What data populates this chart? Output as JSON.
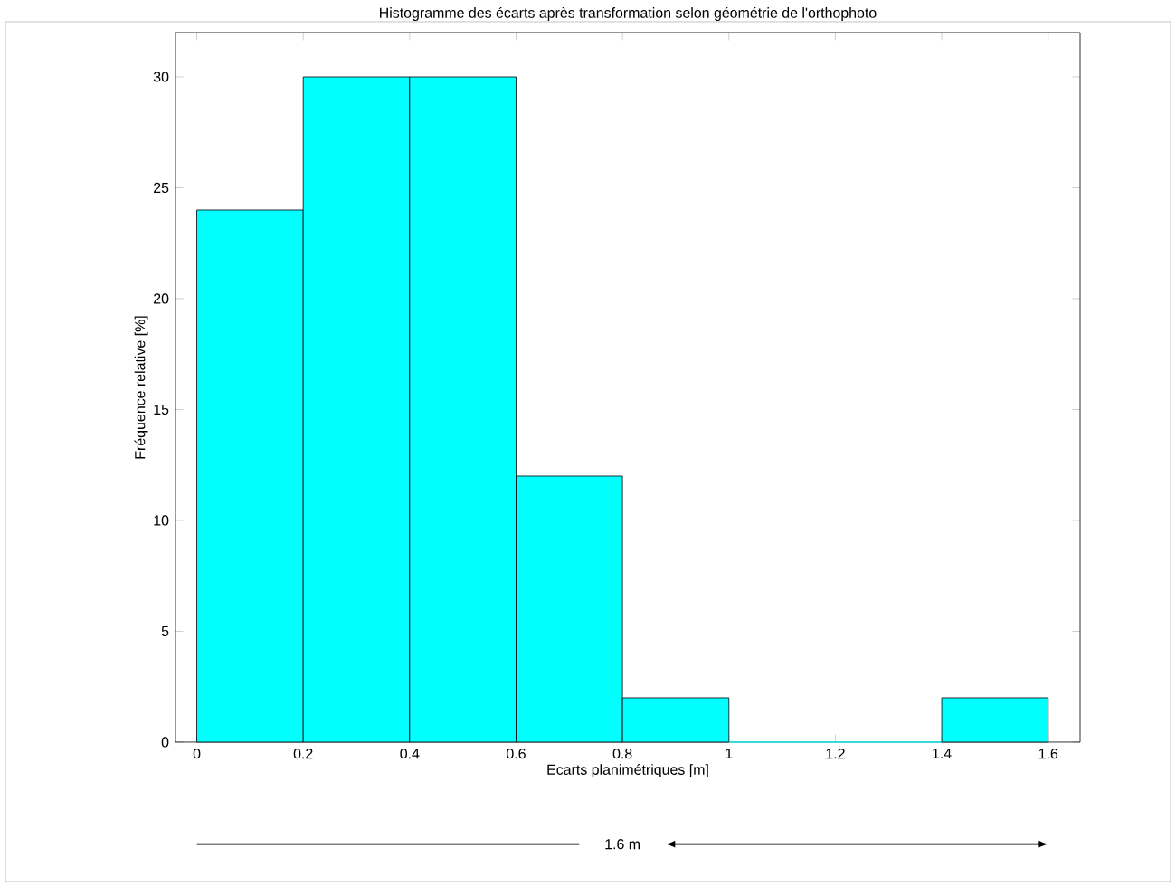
{
  "chart_data": {
    "type": "histogram",
    "title": "Histogramme des écarts après transformation selon géométrie de l'orthophoto",
    "xlabel": "Ecarts planimétriques [m]",
    "ylabel": "Fréquence relative [%]",
    "bins": [
      0,
      0.2,
      0.4,
      0.6,
      0.8,
      1.0,
      1.2,
      1.4,
      1.6
    ],
    "values": [
      24,
      30,
      30,
      12,
      2,
      0,
      0,
      2
    ],
    "color": "#00ffff",
    "xlim": [
      -0.04,
      1.66
    ],
    "ylim": [
      0,
      32
    ],
    "xticks": [
      0,
      0.2,
      0.4,
      0.6,
      0.8,
      1,
      1.2,
      1.4,
      1.6
    ],
    "yticks": [
      0,
      5,
      10,
      15,
      20,
      25,
      30
    ],
    "grid": false,
    "annotations": [
      "1.6 m"
    ]
  }
}
